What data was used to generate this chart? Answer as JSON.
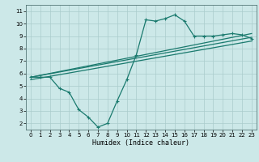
{
  "xlabel": "Humidex (Indice chaleur)",
  "background_color": "#cce8e8",
  "grid_color": "#aacccc",
  "line_color": "#1a7a6e",
  "xlim": [
    -0.5,
    23.5
  ],
  "ylim": [
    1.5,
    11.5
  ],
  "xticks": [
    0,
    1,
    2,
    3,
    4,
    5,
    6,
    7,
    8,
    9,
    10,
    11,
    12,
    13,
    14,
    15,
    16,
    17,
    18,
    19,
    20,
    21,
    22,
    23
  ],
  "yticks": [
    2,
    3,
    4,
    5,
    6,
    7,
    8,
    9,
    10,
    11
  ],
  "line1_x": [
    0,
    1,
    2,
    3,
    4,
    5,
    6,
    7,
    8,
    9,
    10,
    11,
    12,
    13,
    14,
    15,
    16,
    17,
    18,
    19,
    20,
    21,
    22,
    23
  ],
  "line1_y": [
    5.7,
    5.7,
    5.7,
    4.8,
    4.5,
    3.1,
    2.5,
    1.7,
    2.0,
    3.8,
    5.5,
    7.5,
    10.3,
    10.2,
    10.4,
    10.7,
    10.2,
    9.0,
    9.0,
    9.0,
    9.1,
    9.2,
    9.1,
    8.8
  ],
  "line2_x": [
    0,
    23
  ],
  "line2_y": [
    5.7,
    9.2
  ],
  "line3_x": [
    0,
    23
  ],
  "line3_y": [
    5.7,
    8.9
  ],
  "line4_x": [
    0,
    23
  ],
  "line4_y": [
    5.5,
    8.6
  ]
}
